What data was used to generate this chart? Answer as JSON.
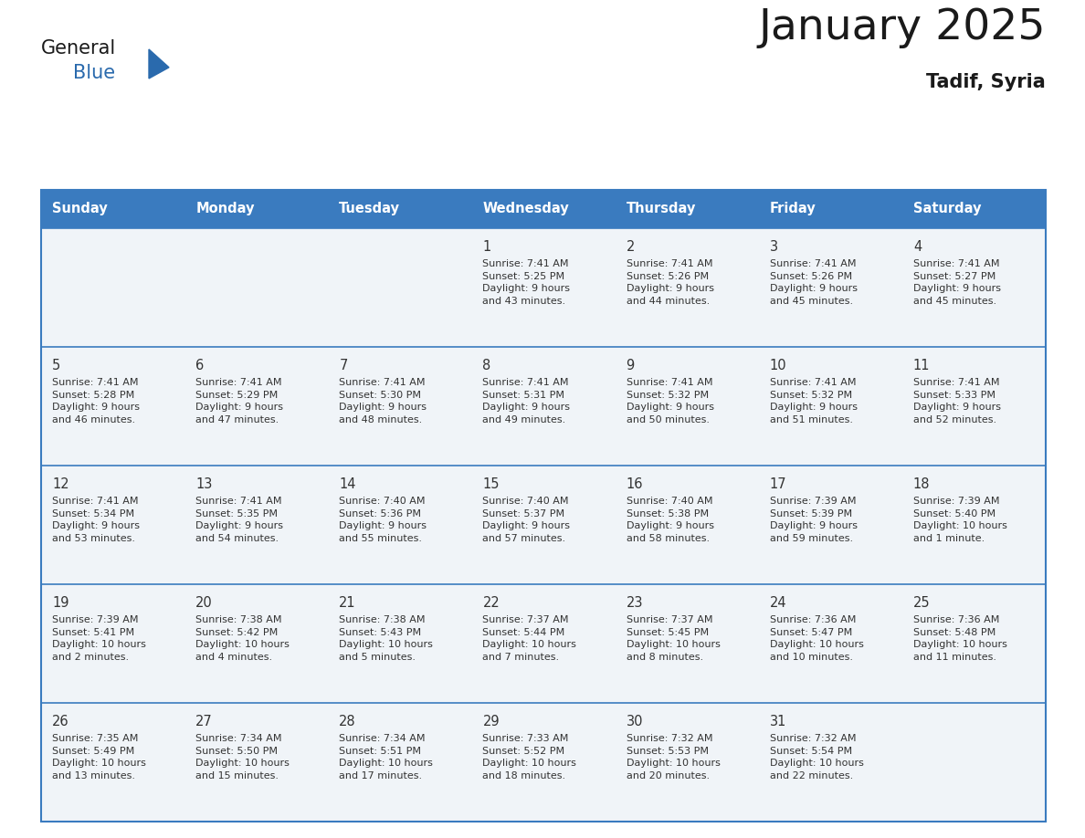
{
  "title": "January 2025",
  "subtitle": "Tadif, Syria",
  "header_color": "#3a7bbf",
  "header_text_color": "#ffffff",
  "cell_bg": "#f0f4f8",
  "cell_bg_white": "#ffffff",
  "text_color": "#333333",
  "separator_color": "#3a7bbf",
  "days_of_week": [
    "Sunday",
    "Monday",
    "Tuesday",
    "Wednesday",
    "Thursday",
    "Friday",
    "Saturday"
  ],
  "calendar_data": [
    [
      {
        "day": "",
        "info": ""
      },
      {
        "day": "",
        "info": ""
      },
      {
        "day": "",
        "info": ""
      },
      {
        "day": "1",
        "info": "Sunrise: 7:41 AM\nSunset: 5:25 PM\nDaylight: 9 hours\nand 43 minutes."
      },
      {
        "day": "2",
        "info": "Sunrise: 7:41 AM\nSunset: 5:26 PM\nDaylight: 9 hours\nand 44 minutes."
      },
      {
        "day": "3",
        "info": "Sunrise: 7:41 AM\nSunset: 5:26 PM\nDaylight: 9 hours\nand 45 minutes."
      },
      {
        "day": "4",
        "info": "Sunrise: 7:41 AM\nSunset: 5:27 PM\nDaylight: 9 hours\nand 45 minutes."
      }
    ],
    [
      {
        "day": "5",
        "info": "Sunrise: 7:41 AM\nSunset: 5:28 PM\nDaylight: 9 hours\nand 46 minutes."
      },
      {
        "day": "6",
        "info": "Sunrise: 7:41 AM\nSunset: 5:29 PM\nDaylight: 9 hours\nand 47 minutes."
      },
      {
        "day": "7",
        "info": "Sunrise: 7:41 AM\nSunset: 5:30 PM\nDaylight: 9 hours\nand 48 minutes."
      },
      {
        "day": "8",
        "info": "Sunrise: 7:41 AM\nSunset: 5:31 PM\nDaylight: 9 hours\nand 49 minutes."
      },
      {
        "day": "9",
        "info": "Sunrise: 7:41 AM\nSunset: 5:32 PM\nDaylight: 9 hours\nand 50 minutes."
      },
      {
        "day": "10",
        "info": "Sunrise: 7:41 AM\nSunset: 5:32 PM\nDaylight: 9 hours\nand 51 minutes."
      },
      {
        "day": "11",
        "info": "Sunrise: 7:41 AM\nSunset: 5:33 PM\nDaylight: 9 hours\nand 52 minutes."
      }
    ],
    [
      {
        "day": "12",
        "info": "Sunrise: 7:41 AM\nSunset: 5:34 PM\nDaylight: 9 hours\nand 53 minutes."
      },
      {
        "day": "13",
        "info": "Sunrise: 7:41 AM\nSunset: 5:35 PM\nDaylight: 9 hours\nand 54 minutes."
      },
      {
        "day": "14",
        "info": "Sunrise: 7:40 AM\nSunset: 5:36 PM\nDaylight: 9 hours\nand 55 minutes."
      },
      {
        "day": "15",
        "info": "Sunrise: 7:40 AM\nSunset: 5:37 PM\nDaylight: 9 hours\nand 57 minutes."
      },
      {
        "day": "16",
        "info": "Sunrise: 7:40 AM\nSunset: 5:38 PM\nDaylight: 9 hours\nand 58 minutes."
      },
      {
        "day": "17",
        "info": "Sunrise: 7:39 AM\nSunset: 5:39 PM\nDaylight: 9 hours\nand 59 minutes."
      },
      {
        "day": "18",
        "info": "Sunrise: 7:39 AM\nSunset: 5:40 PM\nDaylight: 10 hours\nand 1 minute."
      }
    ],
    [
      {
        "day": "19",
        "info": "Sunrise: 7:39 AM\nSunset: 5:41 PM\nDaylight: 10 hours\nand 2 minutes."
      },
      {
        "day": "20",
        "info": "Sunrise: 7:38 AM\nSunset: 5:42 PM\nDaylight: 10 hours\nand 4 minutes."
      },
      {
        "day": "21",
        "info": "Sunrise: 7:38 AM\nSunset: 5:43 PM\nDaylight: 10 hours\nand 5 minutes."
      },
      {
        "day": "22",
        "info": "Sunrise: 7:37 AM\nSunset: 5:44 PM\nDaylight: 10 hours\nand 7 minutes."
      },
      {
        "day": "23",
        "info": "Sunrise: 7:37 AM\nSunset: 5:45 PM\nDaylight: 10 hours\nand 8 minutes."
      },
      {
        "day": "24",
        "info": "Sunrise: 7:36 AM\nSunset: 5:47 PM\nDaylight: 10 hours\nand 10 minutes."
      },
      {
        "day": "25",
        "info": "Sunrise: 7:36 AM\nSunset: 5:48 PM\nDaylight: 10 hours\nand 11 minutes."
      }
    ],
    [
      {
        "day": "26",
        "info": "Sunrise: 7:35 AM\nSunset: 5:49 PM\nDaylight: 10 hours\nand 13 minutes."
      },
      {
        "day": "27",
        "info": "Sunrise: 7:34 AM\nSunset: 5:50 PM\nDaylight: 10 hours\nand 15 minutes."
      },
      {
        "day": "28",
        "info": "Sunrise: 7:34 AM\nSunset: 5:51 PM\nDaylight: 10 hours\nand 17 minutes."
      },
      {
        "day": "29",
        "info": "Sunrise: 7:33 AM\nSunset: 5:52 PM\nDaylight: 10 hours\nand 18 minutes."
      },
      {
        "day": "30",
        "info": "Sunrise: 7:32 AM\nSunset: 5:53 PM\nDaylight: 10 hours\nand 20 minutes."
      },
      {
        "day": "31",
        "info": "Sunrise: 7:32 AM\nSunset: 5:54 PM\nDaylight: 10 hours\nand 22 minutes."
      },
      {
        "day": "",
        "info": ""
      }
    ]
  ],
  "logo_triangle_color": "#2a6aad"
}
